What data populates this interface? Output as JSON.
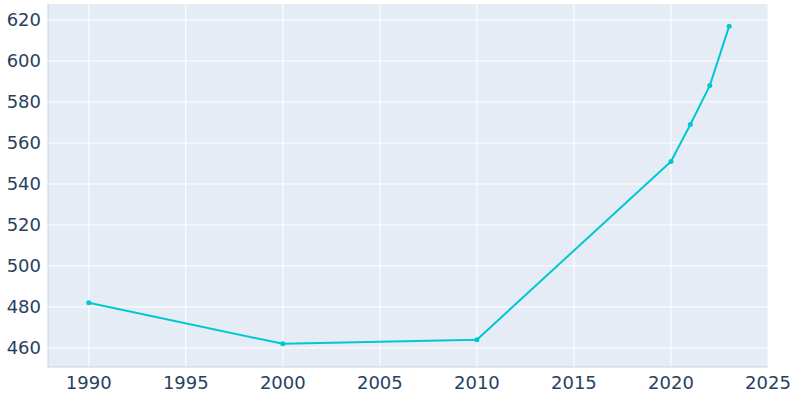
{
  "chart_data": {
    "type": "line",
    "x": [
      1990,
      2000,
      2010,
      2020,
      2021,
      2022,
      2023
    ],
    "values": [
      482,
      462,
      464,
      551,
      569,
      588,
      617
    ],
    "color": "#00c8d2",
    "marker": "circle",
    "xlim": [
      1987.9,
      2025
    ],
    "xticks": [
      1990,
      1995,
      2000,
      2005,
      2010,
      2015,
      2020,
      2025
    ],
    "ylim": [
      450.7,
      627.8
    ],
    "yticks": [
      460,
      480,
      500,
      520,
      540,
      560,
      580,
      600,
      620
    ],
    "grid": true
  }
}
